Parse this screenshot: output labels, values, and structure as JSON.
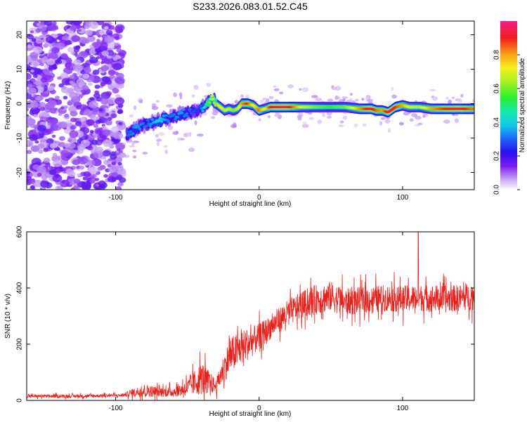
{
  "title": "S233.2026.083.01.52.C45",
  "chart_data": [
    {
      "type": "heatmap",
      "xlabel": "Height of straight line (km)",
      "ylabel": "Frequency (Hz)",
      "xlim": [
        -162,
        150
      ],
      "ylim": [
        -25,
        24
      ],
      "xticks": [
        -100,
        0,
        100
      ],
      "yticks": [
        -20,
        -10,
        0,
        10,
        20
      ],
      "ridge": {
        "description_x": [
          -92,
          -85,
          -78,
          -70,
          -62,
          -55,
          -48,
          -42,
          -36,
          -33,
          -30,
          -27,
          -24,
          -21,
          -18,
          -15,
          -12,
          -8,
          -4,
          0,
          4,
          8,
          12,
          20,
          30,
          40,
          50,
          60,
          70,
          78,
          82,
          86,
          90,
          95,
          100,
          105,
          112,
          120,
          130,
          140,
          148
        ],
        "frequency_hz": [
          -9,
          -7,
          -6,
          -5,
          -4,
          -3,
          -2.5,
          -2,
          0,
          1.5,
          0,
          -1,
          -2,
          -1.5,
          -2,
          -1.5,
          0,
          0,
          -0.5,
          -2,
          -1.5,
          -1,
          -1,
          -1,
          -1,
          -1,
          -1,
          -1,
          -1.5,
          -1.5,
          -2,
          -2,
          -2.5,
          -1,
          -0.5,
          -1,
          -1,
          -1.5,
          -1.5,
          -1.5,
          -1.5
        ],
        "normalized_amplitude": [
          0.3,
          0.35,
          0.3,
          0.4,
          0.3,
          0.35,
          0.3,
          0.25,
          0.5,
          0.7,
          0.6,
          0.75,
          0.65,
          0.7,
          0.6,
          0.65,
          0.8,
          0.9,
          0.7,
          0.85,
          0.7,
          0.9,
          0.95,
          0.95,
          0.7,
          0.6,
          0.55,
          0.6,
          0.8,
          0.95,
          0.85,
          0.8,
          0.95,
          0.9,
          0.8,
          0.7,
          0.65,
          0.8,
          0.9,
          0.95,
          0.85
        ]
      },
      "noise_region_x": [
        -162,
        -95
      ],
      "colorbar": {
        "label": "Normalized spectral amplitude",
        "range": [
          0,
          1
        ],
        "ticks": [
          "0.0",
          "0.2",
          "0.4",
          "0.6",
          "0.8"
        ],
        "tick_values": [
          0,
          0.2,
          0.4,
          0.6,
          0.8
        ]
      }
    },
    {
      "type": "line",
      "xlabel": "Height of straight line (km)",
      "ylabel": "SNR (10 * v/v)",
      "xlim": [
        -162,
        150
      ],
      "ylim": [
        0,
        600
      ],
      "xticks": [
        -100,
        0,
        100
      ],
      "yticks": [
        0,
        200,
        400,
        600
      ],
      "color": "#e8211d",
      "envelope": {
        "x": [
          -162,
          -130,
          -95,
          -90,
          -80,
          -70,
          -60,
          -50,
          -40,
          -30,
          -25,
          -20,
          -10,
          0,
          10,
          20,
          30,
          40,
          50,
          60,
          70,
          80,
          90,
          100,
          110,
          120,
          130,
          140,
          150
        ],
        "mean": [
          15,
          15,
          18,
          25,
          35,
          30,
          30,
          45,
          80,
          50,
          110,
          160,
          195,
          225,
          270,
          310,
          340,
          360,
          370,
          350,
          355,
          360,
          365,
          360,
          365,
          365,
          360,
          365,
          370
        ],
        "spread": [
          10,
          10,
          10,
          20,
          40,
          30,
          30,
          50,
          100,
          40,
          80,
          110,
          100,
          80,
          70,
          80,
          80,
          90,
          90,
          80,
          80,
          80,
          80,
          80,
          80,
          80,
          80,
          80,
          80
        ]
      },
      "spike": {
        "x": 111,
        "y": 600
      }
    }
  ]
}
